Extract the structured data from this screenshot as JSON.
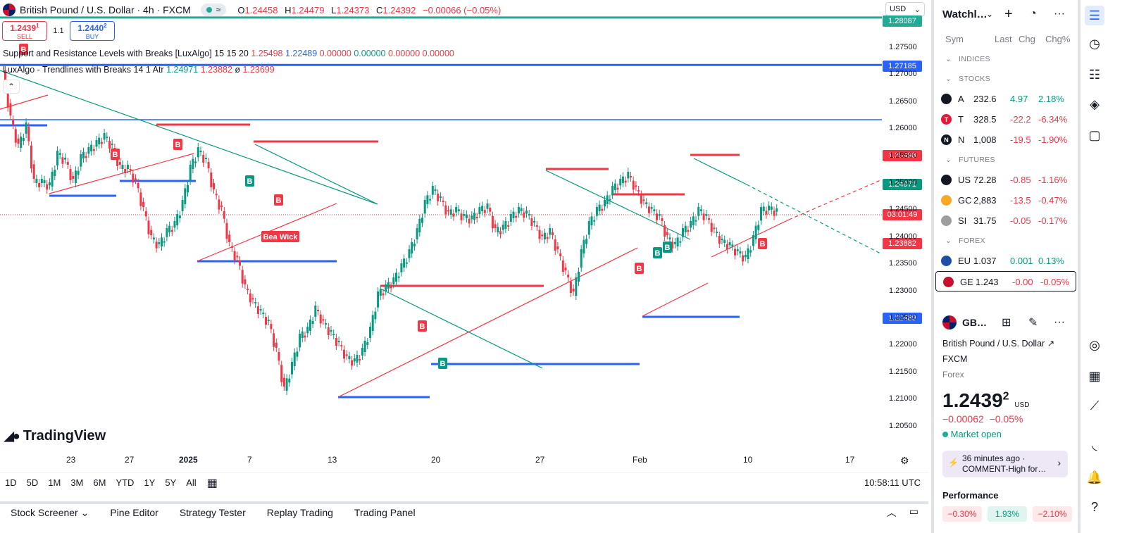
{
  "header": {
    "symbol": "British Pound / U.S. Dollar · 4h · FXCM",
    "pill": "≈",
    "ohlc": {
      "o_label": "O",
      "o": "1.24458",
      "h_label": "H",
      "h": "1.24479",
      "l_label": "L",
      "l": "1.24373",
      "c_label": "C",
      "c": "1.24392",
      "change": "−0.00066 (−0.05%)"
    },
    "currency": "USD"
  },
  "trade": {
    "sell_price": "1.2439",
    "sell_sup": "1",
    "sell_label": "SELL",
    "spread": "1.1",
    "buy_price": "1.2440",
    "buy_sup": "2",
    "buy_label": "BUY"
  },
  "indicators": [
    {
      "name": "Support and Resistance Levels with Breaks [LuxAlgo] 15 15 20",
      "v1": "1.25498",
      "v2": "1.22489",
      "v3": "0.00000",
      "v4": "0.00000",
      "v5": "0.00000",
      "v6": "0.00000"
    },
    {
      "name": "LuxAlgo - Trendlines with Breaks 14 1 Atr",
      "v1": "1.24971",
      "v2": "1.23882",
      "v3": "ø",
      "v4": "1.23699"
    }
  ],
  "price_tags": [
    {
      "label": "1.28087",
      "color": "#22ab94"
    },
    {
      "label": "1.27185",
      "color": "#2962ff"
    },
    {
      "label": "1.25498",
      "color": "#f23645"
    },
    {
      "label": "1.24971",
      "color": "#089981"
    },
    {
      "label": "03:01:49",
      "color": "#f23645"
    },
    {
      "label": "1.23882",
      "color": "#f23645"
    },
    {
      "label": "1.22489",
      "color": "#2962ff"
    }
  ],
  "y_axis": [
    "1.27500",
    "1.27000",
    "1.26500",
    "1.26000",
    "1.25500",
    "1.25000",
    "1.24500",
    "1.24000",
    "1.23500",
    "1.23000",
    "1.22500",
    "1.22000",
    "1.21500",
    "1.21000",
    "1.20500"
  ],
  "x_axis": [
    {
      "label": "23",
      "bold": false
    },
    {
      "label": "27",
      "bold": false
    },
    {
      "label": "2025",
      "bold": true
    },
    {
      "label": "7",
      "bold": false
    },
    {
      "label": "13",
      "bold": false
    },
    {
      "label": "20",
      "bold": false
    },
    {
      "label": "27",
      "bold": false
    },
    {
      "label": "Feb",
      "bold": false
    },
    {
      "label": "10",
      "bold": false
    },
    {
      "label": "17",
      "bold": false
    }
  ],
  "markers": {
    "bear_wick": "Bea Wick",
    "b": "B"
  },
  "logo": "TradingView",
  "ranges": [
    "1D",
    "5D",
    "1M",
    "3M",
    "6M",
    "YTD",
    "1Y",
    "5Y",
    "All"
  ],
  "clock": "10:58:11 UTC",
  "bottom_tabs": [
    "Stock Screener",
    "Pine Editor",
    "Strategy Tester",
    "Replay Trading",
    "Trading Panel"
  ],
  "watchlist": {
    "title": "Watchl…",
    "cols": {
      "sym": "Sym",
      "last": "Last",
      "chg": "Chg",
      "chgp": "Chg%"
    },
    "sections": [
      {
        "name": "INDICES",
        "rows": []
      },
      {
        "name": "STOCKS",
        "rows": [
          {
            "sym": "A",
            "last": "232.6",
            "chg": "4.97",
            "chgp": "2.18%",
            "dir": "pos",
            "logo_color": "#131722",
            "logo_text": ""
          },
          {
            "sym": "T",
            "last": "328.5",
            "chg": "-22.2",
            "chgp": "-6.34%",
            "dir": "neg",
            "logo_color": "#e31937",
            "logo_text": "T"
          },
          {
            "sym": "N",
            "last": "1,008",
            "chg": "-19.5",
            "chgp": "-1.90%",
            "dir": "neg",
            "logo_color": "#131722",
            "logo_text": "N"
          }
        ]
      },
      {
        "name": "FUTURES",
        "rows": [
          {
            "sym": "US",
            "last": "72.28",
            "chg": "-0.85",
            "chgp": "-1.16%",
            "dir": "neg",
            "logo_color": "#131722",
            "logo_text": ""
          },
          {
            "sym": "GC",
            "last": "2,883",
            "chg": "-13.5",
            "chgp": "-0.47%",
            "dir": "neg",
            "logo_color": "#f9a825",
            "logo_text": ""
          },
          {
            "sym": "SI",
            "last": "31.75",
            "chg": "-0.05",
            "chgp": "-0.17%",
            "dir": "neg",
            "logo_color": "#9e9e9e",
            "logo_text": ""
          }
        ]
      },
      {
        "name": "FOREX",
        "rows": [
          {
            "sym": "EU",
            "last": "1.037",
            "chg": "0.001",
            "chgp": "0.13%",
            "dir": "pos",
            "logo_color": "#1e4fa3",
            "logo_text": ""
          },
          {
            "sym": "GE",
            "last": "1.243",
            "chg": "-0.00",
            "chgp": "-0.05%",
            "dir": "neg",
            "logo_color": "#c8102e",
            "logo_text": "",
            "selected": true
          }
        ]
      }
    ]
  },
  "detail": {
    "sym": "GB…",
    "name": "British Pound / U.S. Dollar",
    "exchange": "FXCM",
    "type": "Forex",
    "price": "1.2439",
    "price_sup": "2",
    "currency": "USD",
    "change": "−0.00062",
    "change_pct": "−0.05%",
    "market": "Market open",
    "news_time": "36 minutes ago ·",
    "news_text": "COMMENT-High for…",
    "performance": "Performance",
    "perf": [
      "−0.30%",
      "1.93%",
      "−2.10%"
    ]
  }
}
